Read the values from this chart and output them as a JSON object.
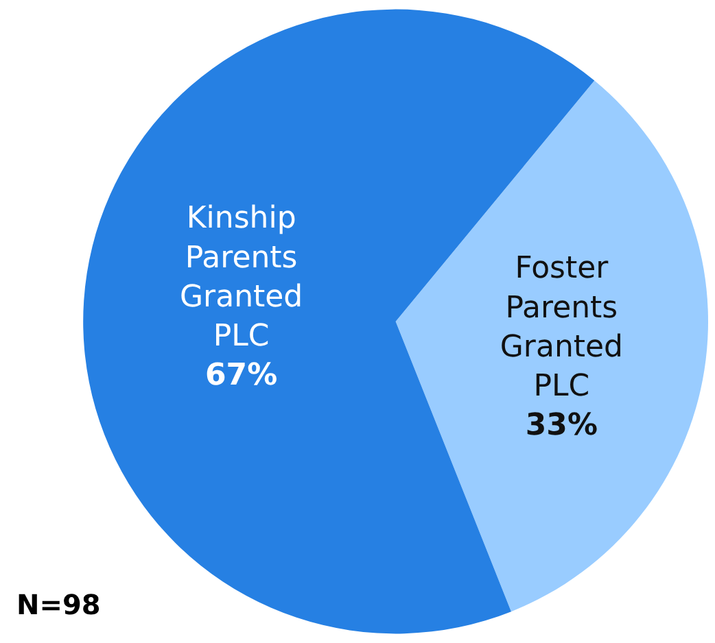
{
  "chart_data": {
    "type": "pie",
    "categories": [
      "Foster Parents Granted PLC",
      "Kinship Parents Granted PLC"
    ],
    "values": [
      33,
      67
    ],
    "value_labels": [
      "33%",
      "67%"
    ],
    "colors": [
      "#99ccff",
      "#2680e3"
    ],
    "legend": false,
    "annotations": [
      "N=98"
    ]
  }
}
